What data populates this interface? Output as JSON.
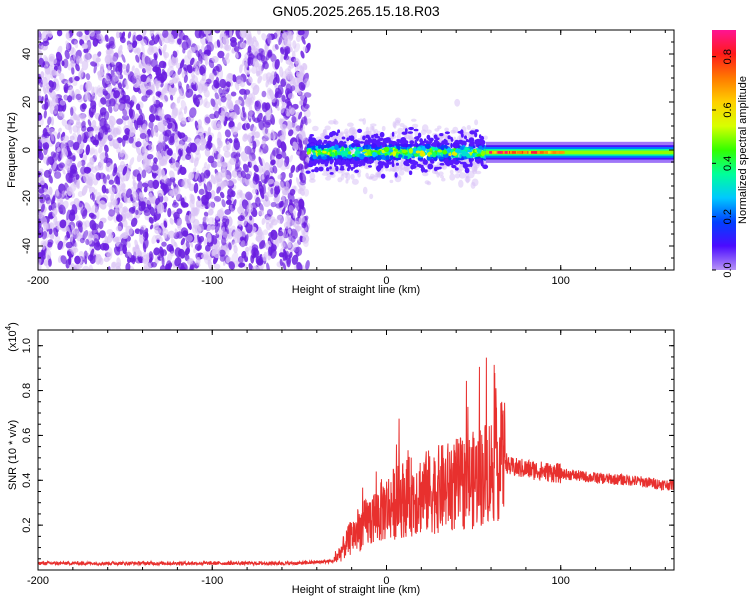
{
  "title": "GN05.2025.265.15.18.R03",
  "colors": {
    "snr_line": "#e8302e",
    "noise_light": "#d9c2f5",
    "noise_dark": "#6a1ee0",
    "colormap": [
      "#b794f6",
      "#4b0bff",
      "#0040ff",
      "#00c8ff",
      "#00ff9a",
      "#33ff00",
      "#d8ff00",
      "#ffd000",
      "#ff7a00",
      "#ff1a1a",
      "#ff1493"
    ]
  },
  "chart_data": [
    {
      "type": "heatmap",
      "title": "GN05.2025.265.15.18.R03",
      "xlabel": "Height of straight line (km)",
      "ylabel": "Frequency (Hz)",
      "xlim": [
        -200,
        165
      ],
      "ylim": [
        -50,
        50
      ],
      "xticks": [
        -200,
        -100,
        0,
        100
      ],
      "yticks": [
        -40,
        -20,
        0,
        20,
        40
      ],
      "colorbar": {
        "label": "Normalized spectral amplitude",
        "range": [
          0.0,
          0.9
        ],
        "ticks": [
          "0.0",
          "0.2",
          "0.4",
          "0.6",
          "0.8"
        ]
      },
      "regions": [
        {
          "x": [
            -200,
            -45
          ],
          "description": "broadband noise"
        },
        {
          "x": [
            -45,
            57
          ],
          "freq_center": -1,
          "freq_halfwidth": 6,
          "peak_amplitude": 0.55
        },
        {
          "x": [
            57,
            165
          ],
          "freq_center": -1,
          "freq_halfwidth": 2,
          "peak_amplitude": 0.9
        }
      ]
    },
    {
      "type": "line",
      "xlabel": "Height of straight line (km)",
      "ylabel": "SNR (10 * v/v)",
      "yscale_label": "(x10",
      "yscale_exp": "4",
      "xlim": [
        -200,
        165
      ],
      "ylim": [
        0.0,
        1.07
      ],
      "xticks": [
        -200,
        -100,
        0,
        100
      ],
      "yticks": [
        0.2,
        0.4,
        0.6,
        0.8,
        1.0
      ],
      "ytick_labels": [
        "0.2",
        "0.4",
        "0.6",
        "0.8",
        "1.0"
      ],
      "series": [
        {
          "x": [
            -200,
            -150,
            -100,
            -50,
            -30,
            -20,
            -10,
            0,
            10,
            20,
            30,
            40,
            50,
            60,
            68,
            70,
            80,
            90,
            100,
            120,
            140,
            160,
            165
          ],
          "y": [
            0.03,
            0.03,
            0.03,
            0.03,
            0.04,
            0.15,
            0.22,
            0.28,
            0.32,
            0.34,
            0.36,
            0.38,
            0.4,
            0.45,
            0.5,
            0.46,
            0.45,
            0.44,
            0.43,
            0.41,
            0.4,
            0.38,
            0.38
          ]
        }
      ]
    }
  ]
}
